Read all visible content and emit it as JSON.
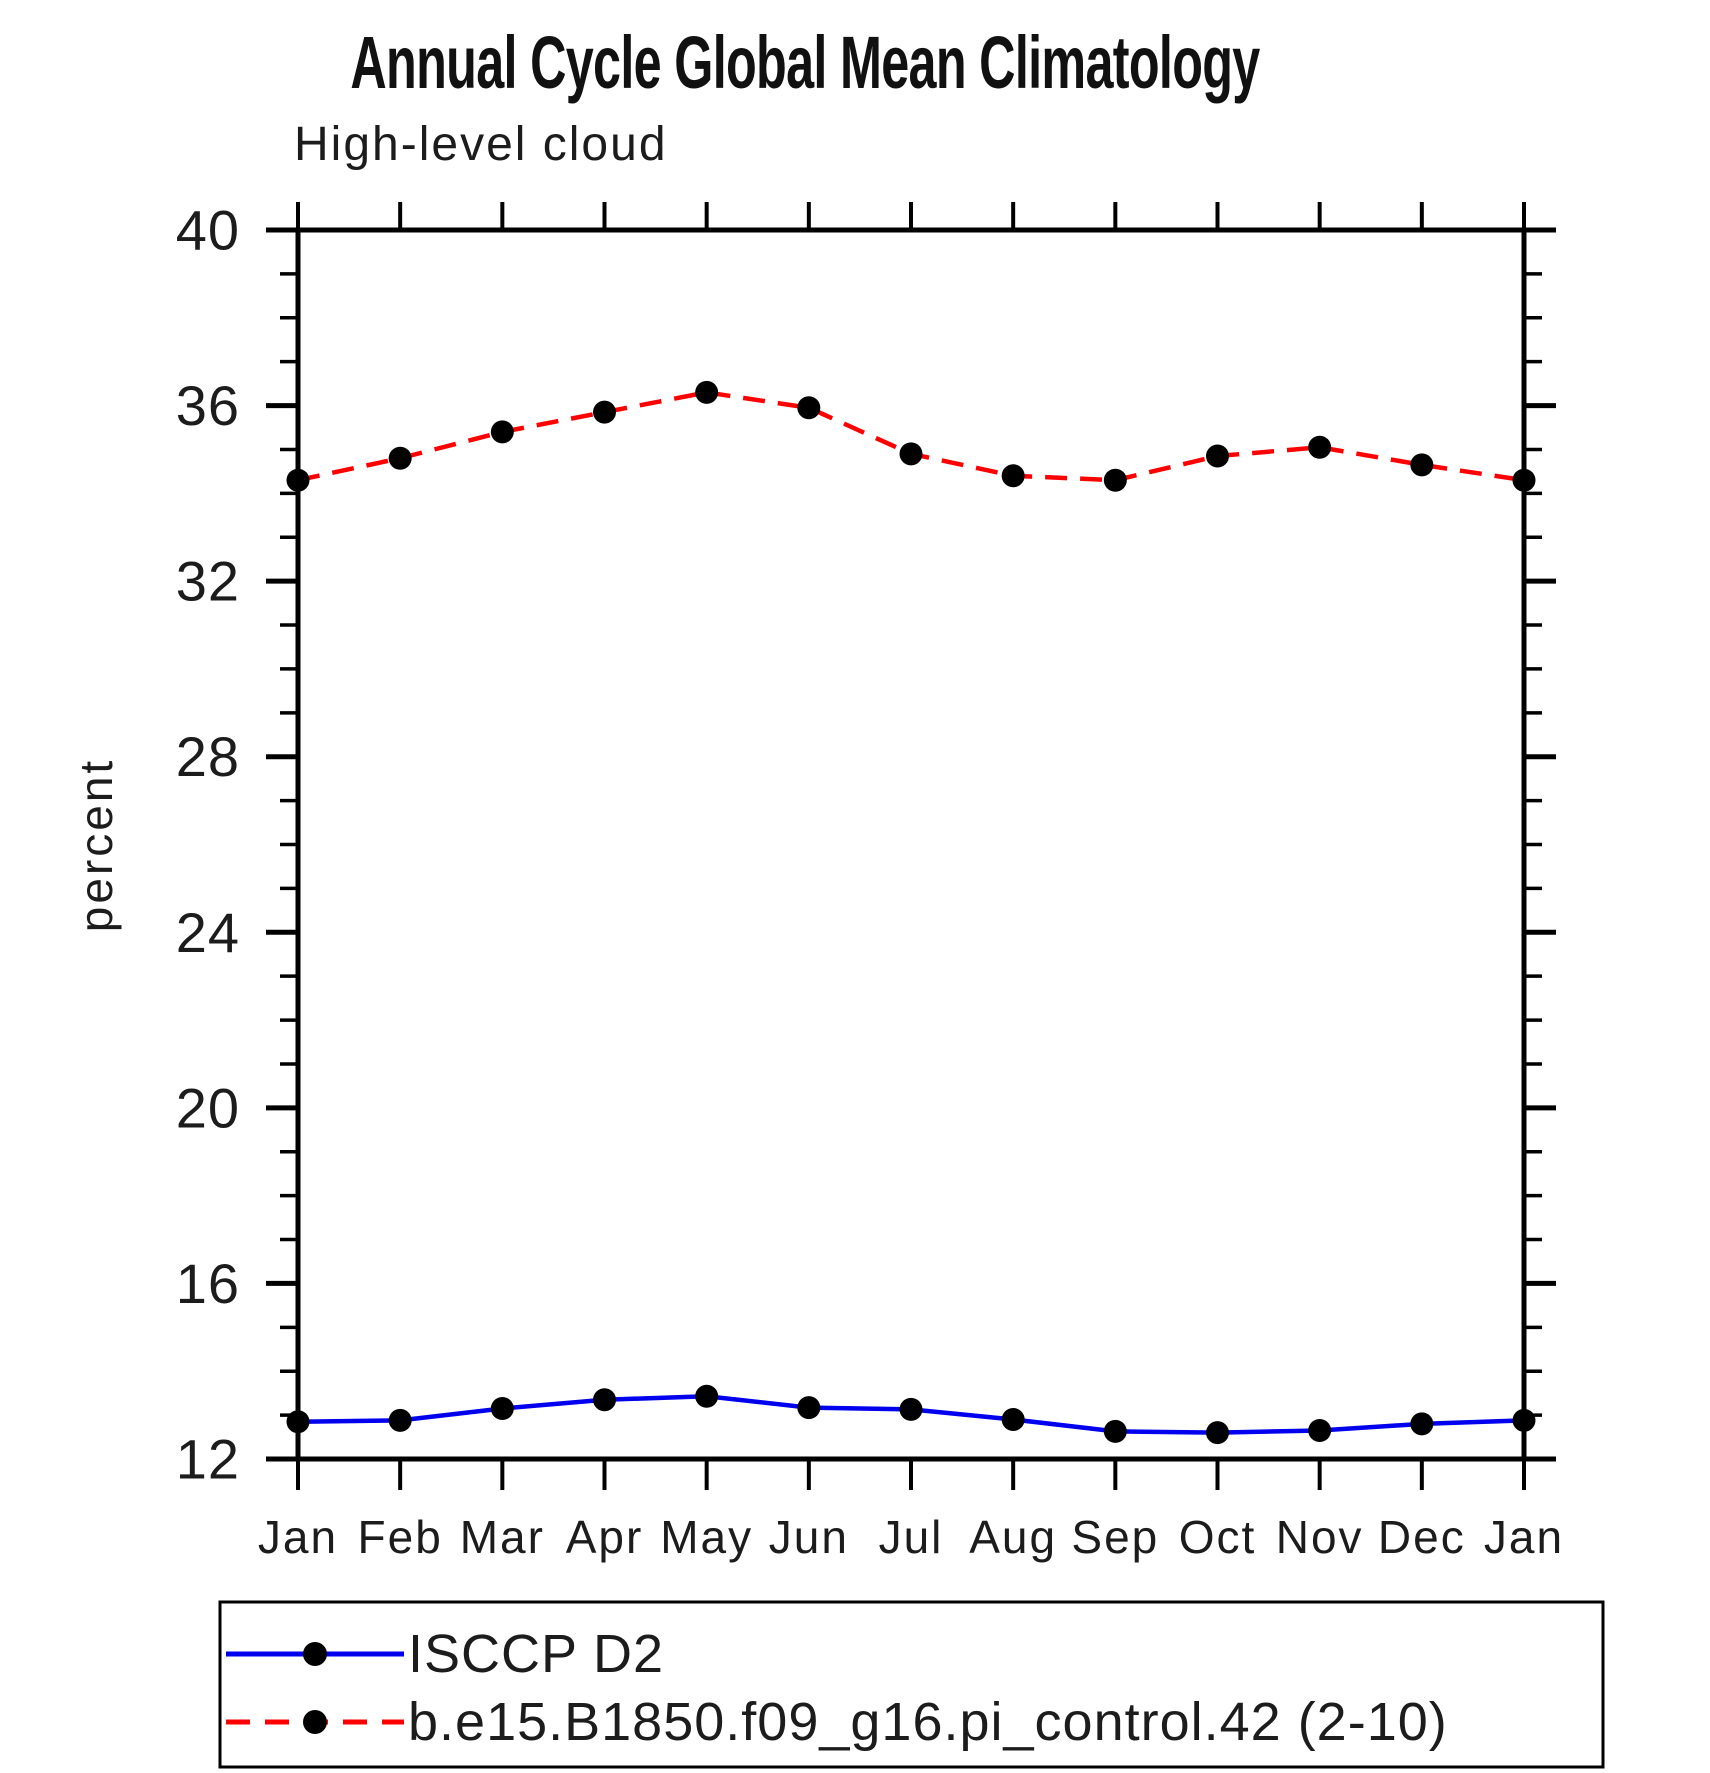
{
  "title": "Annual Cycle Global Mean Climatology",
  "subtitle": "High-level cloud",
  "chart_data": {
    "type": "line",
    "categories": [
      "Jan",
      "Feb",
      "Mar",
      "Apr",
      "May",
      "Jun",
      "Jul",
      "Aug",
      "Sep",
      "Oct",
      "Nov",
      "Dec",
      "Jan"
    ],
    "ylabel": "percent",
    "ylim": [
      12,
      40
    ],
    "y_major_ticks": [
      12,
      16,
      20,
      24,
      28,
      32,
      36,
      40
    ],
    "y_minor_step": 1,
    "grid": false,
    "legend_position": "bottom-left-box",
    "frame_color": "#000000",
    "background_color": "#ffffff",
    "series": [
      {
        "name": "ISCCP D2",
        "color": "#0000ee",
        "line_style": "solid",
        "marker": "filled-circle",
        "marker_color": "#000000",
        "values": [
          12.85,
          12.88,
          13.15,
          13.35,
          13.43,
          13.17,
          13.13,
          12.9,
          12.63,
          12.6,
          12.65,
          12.8,
          12.88
        ]
      },
      {
        "name": "b.e15.B1850.f09_g16.pi_control.42 (2-10)",
        "color": "#ff0000",
        "line_style": "dashed",
        "marker": "filled-circle",
        "marker_color": "#000000",
        "values": [
          34.3,
          34.8,
          35.4,
          35.85,
          36.3,
          35.95,
          34.9,
          34.4,
          34.3,
          34.85,
          35.05,
          34.65,
          34.3
        ]
      }
    ]
  }
}
